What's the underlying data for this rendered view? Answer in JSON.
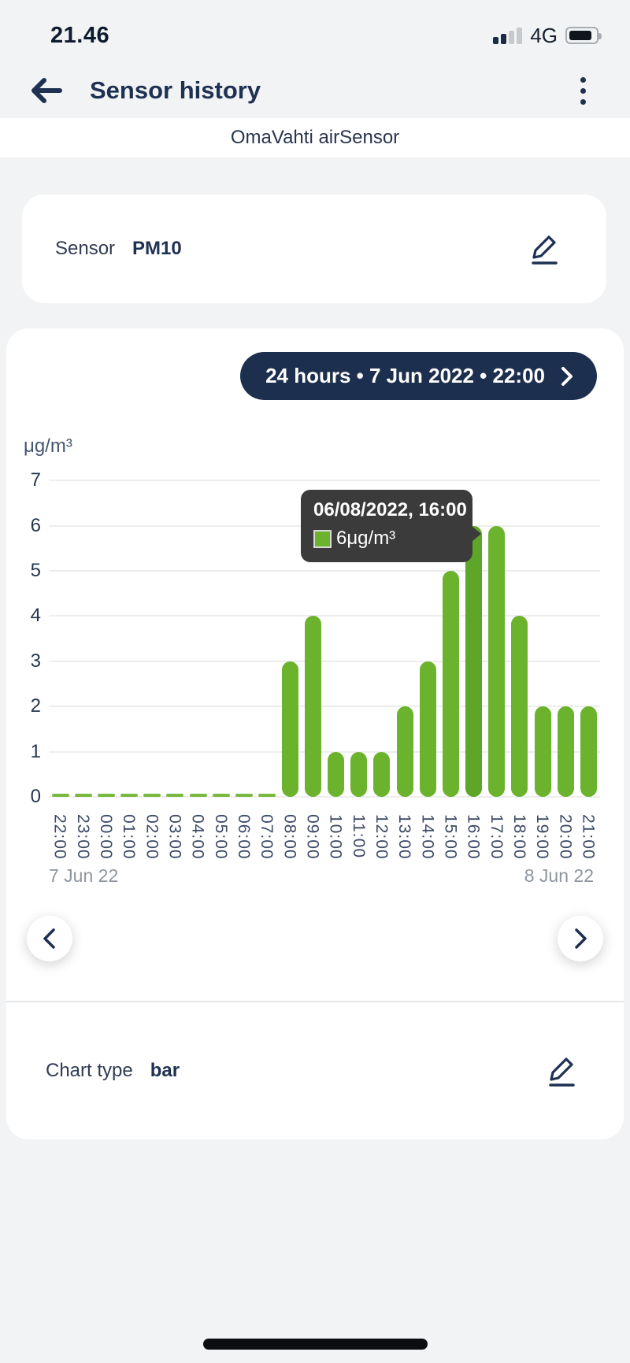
{
  "status_bar": {
    "time": "21.46",
    "network": "4G"
  },
  "header": {
    "title": "Sensor history"
  },
  "subheader": {
    "device": "OmaVahti airSensor"
  },
  "sensor_card": {
    "label": "Sensor",
    "value": "PM10"
  },
  "chart_card": {
    "range_pill_label": "24 hours • 7 Jun 2022 • 22:00",
    "tooltip": {
      "title": "06/08/2022, 16:00",
      "value_label": "6μg/m³"
    }
  },
  "chart_type_card": {
    "label": "Chart type",
    "value": "bar"
  },
  "colors": {
    "accent_navy": "#1d2f4e",
    "bar_green": "#6cb32d",
    "bar_green_highlight": "#5da627",
    "tooltip_bg": "#3b3b3b",
    "page_bg": "#f1f3f4"
  },
  "chart_data": {
    "type": "bar",
    "title": "",
    "ylabel": "μg/m³",
    "xlabel": "",
    "categories": [
      "22:00",
      "23:00",
      "00:00",
      "01:00",
      "02:00",
      "03:00",
      "04:00",
      "05:00",
      "06:00",
      "07:00",
      "08:00",
      "09:00",
      "10:00",
      "11:00",
      "12:00",
      "13:00",
      "14:00",
      "15:00",
      "16:00",
      "17:00",
      "18:00",
      "19:00",
      "20:00",
      "21:00"
    ],
    "values": [
      0,
      0,
      0,
      0,
      0,
      0,
      0,
      0,
      0,
      0,
      3,
      4,
      1,
      1,
      1,
      2,
      3,
      5,
      6,
      6,
      4,
      2,
      2,
      2
    ],
    "highlighted_category": "16:00",
    "tooltip_point": {
      "category": "16:00",
      "value": 6
    },
    "ylim": [
      0,
      7
    ],
    "yticks": [
      0,
      1,
      2,
      3,
      4,
      5,
      6,
      7
    ],
    "grid": "horizontal",
    "x_annotations": [
      "7 Jun 22",
      "8 Jun 22"
    ],
    "legend": "none"
  }
}
